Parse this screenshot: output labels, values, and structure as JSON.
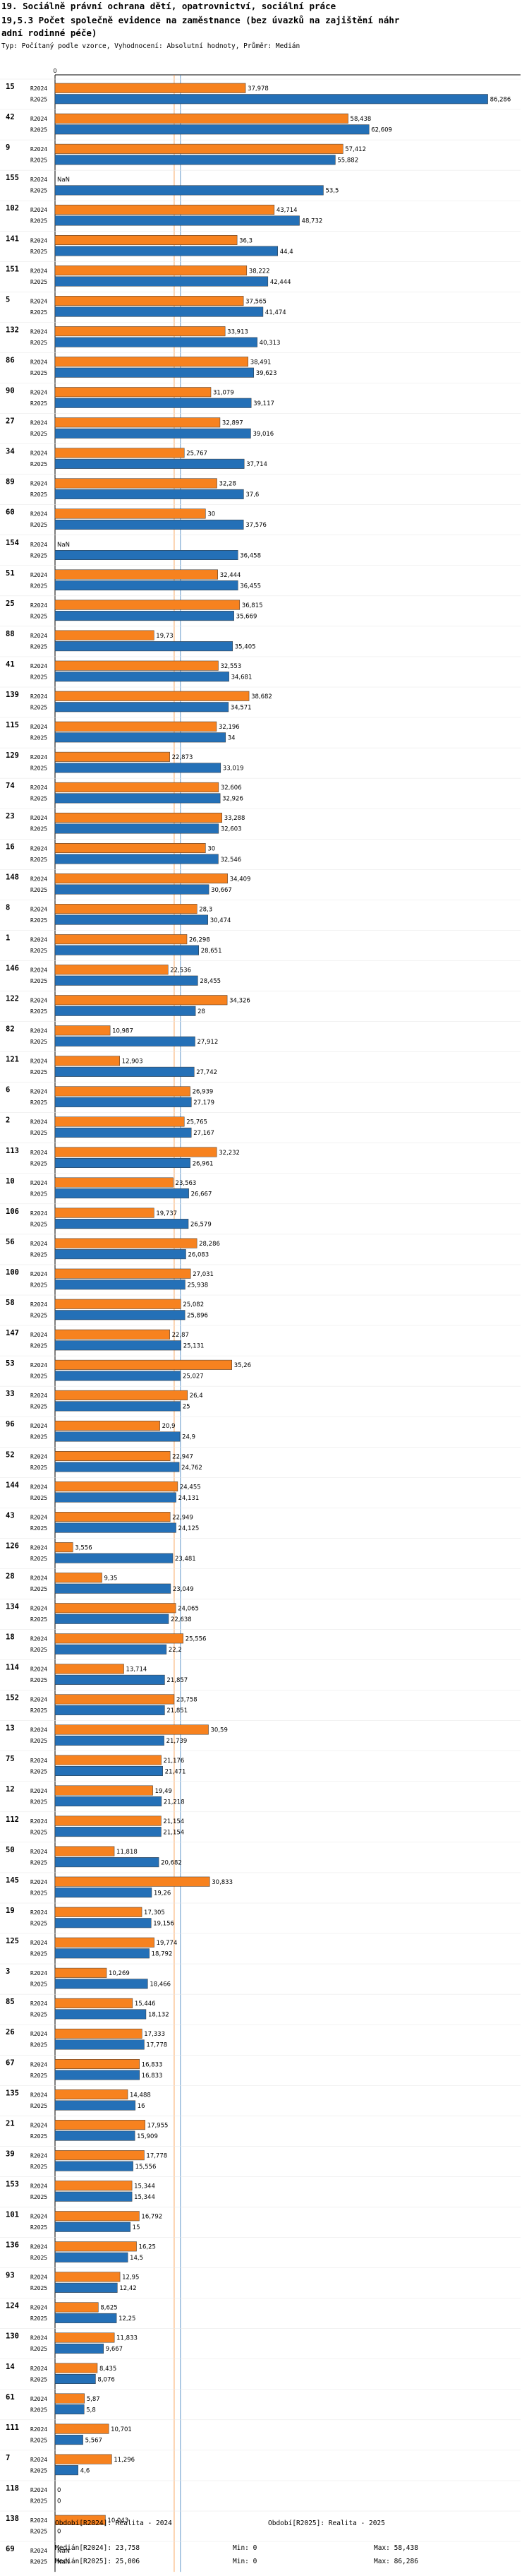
{
  "title_lines": [
    "19. Sociálně právní ochrana dětí, opatrovnictví, sociální práce",
    "19,5.3 Počet společně evidence na zaměstnance  (bez úvazků na zajištění náhr",
    "adní rodinné péče)"
  ],
  "subtitle": "Typ: Počítaný podle vzorce, Vyhodnocení: Absolutní hodnoty, Průměr: Medián",
  "chart_data": {
    "type": "bar",
    "orientation": "horizontal",
    "xlim": [
      0,
      90
    ],
    "axis_tick_label": "0",
    "series": [
      {
        "name": "R2024",
        "color": "#f7821f"
      },
      {
        "name": "R2025",
        "color": "#2470b7"
      }
    ],
    "median_lines": [
      23.758,
      25.006
    ],
    "groups": [
      {
        "id": "15",
        "values": [
          37.978,
          86.286
        ],
        "labels": [
          "37,978",
          "86,286"
        ]
      },
      {
        "id": "42",
        "values": [
          58.438,
          62.609
        ],
        "labels": [
          "58,438",
          "62,609"
        ]
      },
      {
        "id": "9",
        "values": [
          57.412,
          55.882
        ],
        "labels": [
          "57,412",
          "55,882"
        ]
      },
      {
        "id": "155",
        "values": [
          null,
          53.5
        ],
        "labels": [
          "NaN",
          "53,5"
        ]
      },
      {
        "id": "102",
        "values": [
          43.714,
          48.732
        ],
        "labels": [
          "43,714",
          "48,732"
        ]
      },
      {
        "id": "141",
        "values": [
          36.3,
          44.4
        ],
        "labels": [
          "36,3",
          "44,4"
        ]
      },
      {
        "id": "151",
        "values": [
          38.222,
          42.444
        ],
        "labels": [
          "38,222",
          "42,444"
        ]
      },
      {
        "id": "5",
        "values": [
          37.565,
          41.474
        ],
        "labels": [
          "37,565",
          "41,474"
        ]
      },
      {
        "id": "132",
        "values": [
          33.913,
          40.313
        ],
        "labels": [
          "33,913",
          "40,313"
        ]
      },
      {
        "id": "86",
        "values": [
          38.491,
          39.623
        ],
        "labels": [
          "38,491",
          "39,623"
        ]
      },
      {
        "id": "90",
        "values": [
          31.079,
          39.117
        ],
        "labels": [
          "31,079",
          "39,117"
        ]
      },
      {
        "id": "27",
        "values": [
          32.897,
          39.016
        ],
        "labels": [
          "32,897",
          "39,016"
        ]
      },
      {
        "id": "34",
        "values": [
          25.767,
          37.714
        ],
        "labels": [
          "25,767",
          "37,714"
        ]
      },
      {
        "id": "89",
        "values": [
          32.28,
          37.6
        ],
        "labels": [
          "32,28",
          "37,6"
        ]
      },
      {
        "id": "60",
        "values": [
          30,
          37.576
        ],
        "labels": [
          "30",
          "37,576"
        ]
      },
      {
        "id": "154",
        "values": [
          null,
          36.458
        ],
        "labels": [
          "NaN",
          "36,458"
        ]
      },
      {
        "id": "51",
        "values": [
          32.444,
          36.455
        ],
        "labels": [
          "32,444",
          "36,455"
        ]
      },
      {
        "id": "25",
        "values": [
          36.815,
          35.669
        ],
        "labels": [
          "36,815",
          "35,669"
        ]
      },
      {
        "id": "88",
        "values": [
          19.73,
          35.405
        ],
        "labels": [
          "19,73",
          "35,405"
        ]
      },
      {
        "id": "41",
        "values": [
          32.553,
          34.681
        ],
        "labels": [
          "32,553",
          "34,681"
        ]
      },
      {
        "id": "139",
        "values": [
          38.682,
          34.571
        ],
        "labels": [
          "38,682",
          "34,571"
        ]
      },
      {
        "id": "115",
        "values": [
          32.196,
          34
        ],
        "labels": [
          "32,196",
          "34"
        ]
      },
      {
        "id": "129",
        "values": [
          22.873,
          33.019
        ],
        "labels": [
          "22,873",
          "33,019"
        ]
      },
      {
        "id": "74",
        "values": [
          32.606,
          32.926
        ],
        "labels": [
          "32,606",
          "32,926"
        ]
      },
      {
        "id": "23",
        "values": [
          33.288,
          32.603
        ],
        "labels": [
          "33,288",
          "32,603"
        ]
      },
      {
        "id": "16",
        "values": [
          30,
          32.546
        ],
        "labels": [
          "30",
          "32,546"
        ]
      },
      {
        "id": "148",
        "values": [
          34.409,
          30.667
        ],
        "labels": [
          "34,409",
          "30,667"
        ]
      },
      {
        "id": "8",
        "values": [
          28.3,
          30.474
        ],
        "labels": [
          "28,3",
          "30,474"
        ]
      },
      {
        "id": "1",
        "values": [
          26.298,
          28.651
        ],
        "labels": [
          "26,298",
          "28,651"
        ]
      },
      {
        "id": "146",
        "values": [
          22.536,
          28.455
        ],
        "labels": [
          "22,536",
          "28,455"
        ]
      },
      {
        "id": "122",
        "values": [
          34.326,
          28
        ],
        "labels": [
          "34,326",
          "28"
        ]
      },
      {
        "id": "82",
        "values": [
          10.987,
          27.912
        ],
        "labels": [
          "10,987",
          "27,912"
        ]
      },
      {
        "id": "121",
        "values": [
          12.903,
          27.742
        ],
        "labels": [
          "12,903",
          "27,742"
        ]
      },
      {
        "id": "6",
        "values": [
          26.939,
          27.179
        ],
        "labels": [
          "26,939",
          "27,179"
        ]
      },
      {
        "id": "2",
        "values": [
          25.765,
          27.167
        ],
        "labels": [
          "25,765",
          "27,167"
        ]
      },
      {
        "id": "113",
        "values": [
          32.232,
          26.961
        ],
        "labels": [
          "32,232",
          "26,961"
        ]
      },
      {
        "id": "10",
        "values": [
          23.563,
          26.667
        ],
        "labels": [
          "23,563",
          "26,667"
        ]
      },
      {
        "id": "106",
        "values": [
          19.737,
          26.579
        ],
        "labels": [
          "19,737",
          "26,579"
        ]
      },
      {
        "id": "56",
        "values": [
          28.286,
          26.083
        ],
        "labels": [
          "28,286",
          "26,083"
        ]
      },
      {
        "id": "100",
        "values": [
          27.031,
          25.938
        ],
        "labels": [
          "27,031",
          "25,938"
        ]
      },
      {
        "id": "58",
        "values": [
          25.082,
          25.896
        ],
        "labels": [
          "25,082",
          "25,896"
        ]
      },
      {
        "id": "147",
        "values": [
          22.87,
          25.131
        ],
        "labels": [
          "22,87",
          "25,131"
        ]
      },
      {
        "id": "53",
        "values": [
          35.26,
          25.027
        ],
        "labels": [
          "35,26",
          "25,027"
        ]
      },
      {
        "id": "33",
        "values": [
          26.4,
          25
        ],
        "labels": [
          "26,4",
          "25"
        ]
      },
      {
        "id": "96",
        "values": [
          20.9,
          24.9
        ],
        "labels": [
          "20,9",
          "24,9"
        ]
      },
      {
        "id": "52",
        "values": [
          22.947,
          24.762
        ],
        "labels": [
          "22,947",
          "24,762"
        ]
      },
      {
        "id": "144",
        "values": [
          24.455,
          24.131
        ],
        "labels": [
          "24,455",
          "24,131"
        ]
      },
      {
        "id": "43",
        "values": [
          22.949,
          24.125
        ],
        "labels": [
          "22,949",
          "24,125"
        ]
      },
      {
        "id": "126",
        "values": [
          3.556,
          23.481
        ],
        "labels": [
          "3,556",
          "23,481"
        ]
      },
      {
        "id": "28",
        "values": [
          9.35,
          23.049
        ],
        "labels": [
          "9,35",
          "23,049"
        ]
      },
      {
        "id": "134",
        "values": [
          24.065,
          22.638
        ],
        "labels": [
          "24,065",
          "22,638"
        ]
      },
      {
        "id": "18",
        "values": [
          25.556,
          22.2
        ],
        "labels": [
          "25,556",
          "22,2"
        ]
      },
      {
        "id": "114",
        "values": [
          13.714,
          21.857
        ],
        "labels": [
          "13,714",
          "21,857"
        ]
      },
      {
        "id": "152",
        "values": [
          23.758,
          21.851
        ],
        "labels": [
          "23,758",
          "21,851"
        ]
      },
      {
        "id": "13",
        "values": [
          30.59,
          21.739
        ],
        "labels": [
          "30,59",
          "21,739"
        ]
      },
      {
        "id": "75",
        "values": [
          21.176,
          21.471
        ],
        "labels": [
          "21,176",
          "21,471"
        ]
      },
      {
        "id": "12",
        "values": [
          19.49,
          21.218
        ],
        "labels": [
          "19,49",
          "21,218"
        ]
      },
      {
        "id": "112",
        "values": [
          21.154,
          21.154
        ],
        "labels": [
          "21,154",
          "21,154"
        ]
      },
      {
        "id": "50",
        "values": [
          11.818,
          20.682
        ],
        "labels": [
          "11,818",
          "20,682"
        ]
      },
      {
        "id": "145",
        "values": [
          30.833,
          19.26
        ],
        "labels": [
          "30,833",
          "19,26"
        ]
      },
      {
        "id": "19",
        "values": [
          17.305,
          19.156
        ],
        "labels": [
          "17,305",
          "19,156"
        ]
      },
      {
        "id": "125",
        "values": [
          19.774,
          18.792
        ],
        "labels": [
          "19,774",
          "18,792"
        ]
      },
      {
        "id": "3",
        "values": [
          10.269,
          18.466
        ],
        "labels": [
          "10,269",
          "18,466"
        ]
      },
      {
        "id": "85",
        "values": [
          15.446,
          18.132
        ],
        "labels": [
          "15,446",
          "18,132"
        ]
      },
      {
        "id": "26",
        "values": [
          17.333,
          17.778
        ],
        "labels": [
          "17,333",
          "17,778"
        ]
      },
      {
        "id": "67",
        "values": [
          16.833,
          16.833
        ],
        "labels": [
          "16,833",
          "16,833"
        ]
      },
      {
        "id": "135",
        "values": [
          14.488,
          16
        ],
        "labels": [
          "14,488",
          "16"
        ]
      },
      {
        "id": "21",
        "values": [
          17.955,
          15.909
        ],
        "labels": [
          "17,955",
          "15,909"
        ]
      },
      {
        "id": "39",
        "values": [
          17.778,
          15.556
        ],
        "labels": [
          "17,778",
          "15,556"
        ]
      },
      {
        "id": "153",
        "values": [
          15.344,
          15.344
        ],
        "labels": [
          "15,344",
          "15,344"
        ]
      },
      {
        "id": "101",
        "values": [
          16.792,
          15
        ],
        "labels": [
          "16,792",
          "15"
        ]
      },
      {
        "id": "136",
        "values": [
          16.25,
          14.5
        ],
        "labels": [
          "16,25",
          "14,5"
        ]
      },
      {
        "id": "93",
        "values": [
          12.95,
          12.42
        ],
        "labels": [
          "12,95",
          "12,42"
        ]
      },
      {
        "id": "124",
        "values": [
          8.625,
          12.25
        ],
        "labels": [
          "8,625",
          "12,25"
        ]
      },
      {
        "id": "130",
        "values": [
          11.833,
          9.667
        ],
        "labels": [
          "11,833",
          "9,667"
        ]
      },
      {
        "id": "14",
        "values": [
          8.435,
          8.076
        ],
        "labels": [
          "8,435",
          "8,076"
        ]
      },
      {
        "id": "61",
        "values": [
          5.87,
          5.8
        ],
        "labels": [
          "5,87",
          "5,8"
        ]
      },
      {
        "id": "111",
        "values": [
          10.701,
          5.567
        ],
        "labels": [
          "10,701",
          "5,567"
        ]
      },
      {
        "id": "7",
        "values": [
          11.296,
          4.6
        ],
        "labels": [
          "11,296",
          "4,6"
        ]
      },
      {
        "id": "118",
        "values": [
          0,
          0
        ],
        "labels": [
          "0",
          "0"
        ]
      },
      {
        "id": "138",
        "values": [
          10.043,
          0
        ],
        "labels": [
          "10,043",
          "0"
        ]
      },
      {
        "id": "69",
        "values": [
          null,
          null
        ],
        "labels": [
          "NaN",
          "NaN"
        ]
      }
    ]
  },
  "footer": {
    "left": [
      "Období[R2024]: Realita - 2024",
      "Medián[R2024]: 23,758",
      "Medián[R2025]: 25,006"
    ],
    "right": [
      "Období[R2025]: Realita - 2025",
      "Max: 58,438",
      "Max: 86,286"
    ],
    "mins": [
      "Min: 0",
      "Min: 0"
    ]
  }
}
